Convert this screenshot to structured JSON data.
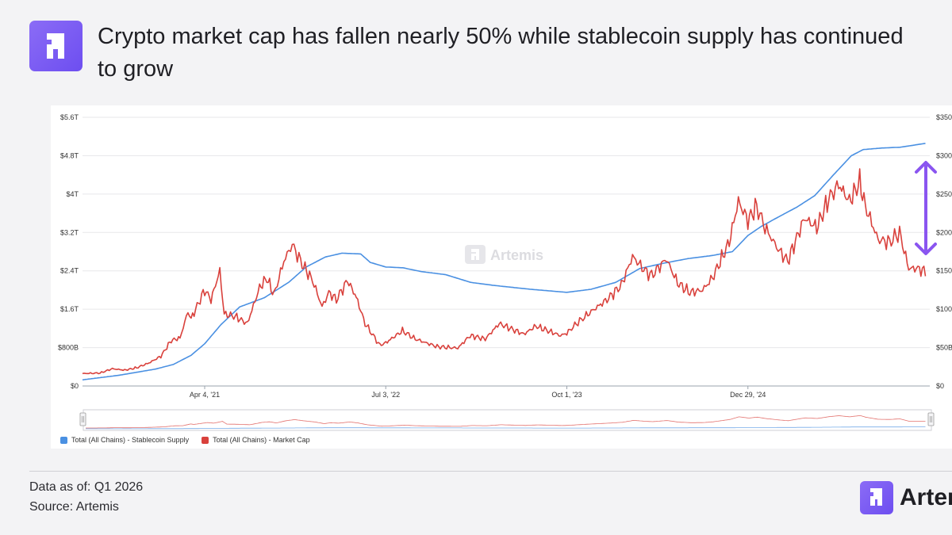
{
  "header": {
    "logo_icon": "artemis-logo-icon",
    "title": "Crypto market cap has fallen nearly 50% while stablecoin supply has continued to grow"
  },
  "chart_data": {
    "type": "line",
    "watermark": "Artemis",
    "x_ticks": [
      "Apr 4, '21",
      "Jul 3, '22",
      "Oct 1, '23",
      "Dec 29, '24"
    ],
    "y_left_ticks": [
      "$0",
      "$800B",
      "$1.6T",
      "$2.4T",
      "$3.2T",
      "$4T",
      "$4.8T",
      "$5.6T"
    ],
    "y_right_ticks": [
      "$0",
      "$50B",
      "$100B",
      "$150B",
      "$200B",
      "$250B",
      "$300B",
      "$350B"
    ],
    "ylim_left": [
      0,
      5.6
    ],
    "ylim_right": [
      0,
      350
    ],
    "xlim": [
      "2020-06-01",
      "2026-03-31"
    ],
    "legend_placement": "bottom-left",
    "grid": true,
    "series": [
      {
        "name": "Total (All Chains) - Stablecoin Supply",
        "axis": "right",
        "color": "#4a90e2",
        "points": [
          [
            "2020-06-01",
            8
          ],
          [
            "2020-09-01",
            14
          ],
          [
            "2020-12-01",
            22
          ],
          [
            "2021-01-15",
            28
          ],
          [
            "2021-03-01",
            40
          ],
          [
            "2021-04-04",
            55
          ],
          [
            "2021-05-15",
            80
          ],
          [
            "2021-07-01",
            103
          ],
          [
            "2021-09-01",
            115
          ],
          [
            "2021-11-01",
            135
          ],
          [
            "2021-12-15",
            155
          ],
          [
            "2022-02-01",
            168
          ],
          [
            "2022-03-15",
            173
          ],
          [
            "2022-05-01",
            172
          ],
          [
            "2022-05-25",
            161
          ],
          [
            "2022-07-03",
            155
          ],
          [
            "2022-08-15",
            154
          ],
          [
            "2022-10-01",
            149
          ],
          [
            "2022-12-01",
            145
          ],
          [
            "2023-02-01",
            135
          ],
          [
            "2023-04-01",
            131
          ],
          [
            "2023-07-01",
            126
          ],
          [
            "2023-10-01",
            122
          ],
          [
            "2023-12-01",
            126
          ],
          [
            "2024-02-01",
            135
          ],
          [
            "2024-04-01",
            153
          ],
          [
            "2024-06-01",
            160
          ],
          [
            "2024-08-01",
            166
          ],
          [
            "2024-10-01",
            170
          ],
          [
            "2024-11-20",
            175
          ],
          [
            "2024-12-29",
            196
          ],
          [
            "2025-02-01",
            208
          ],
          [
            "2025-03-15",
            220
          ],
          [
            "2025-05-01",
            233
          ],
          [
            "2025-06-15",
            248
          ],
          [
            "2025-08-01",
            275
          ],
          [
            "2025-09-15",
            300
          ],
          [
            "2025-10-15",
            308
          ],
          [
            "2025-12-01",
            310
          ],
          [
            "2026-01-15",
            311
          ],
          [
            "2026-03-20",
            316
          ]
        ]
      },
      {
        "name": "Total (All Chains) - Market Cap",
        "axis": "left",
        "color": "#d9413c",
        "points": [
          [
            "2020-06-01",
            0.26
          ],
          [
            "2020-07-15",
            0.27
          ],
          [
            "2020-08-15",
            0.36
          ],
          [
            "2020-09-15",
            0.33
          ],
          [
            "2020-10-15",
            0.38
          ],
          [
            "2020-11-15",
            0.48
          ],
          [
            "2020-12-15",
            0.62
          ],
          [
            "2021-01-10",
            0.95
          ],
          [
            "2021-02-01",
            1.0
          ],
          [
            "2021-02-21",
            1.55
          ],
          [
            "2021-03-01",
            1.4
          ],
          [
            "2021-04-04",
            2.0
          ],
          [
            "2021-04-20",
            1.8
          ],
          [
            "2021-05-12",
            2.4
          ],
          [
            "2021-05-23",
            1.5
          ],
          [
            "2021-06-20",
            1.45
          ],
          [
            "2021-07-20",
            1.3
          ],
          [
            "2021-08-20",
            2.05
          ],
          [
            "2021-09-07",
            2.25
          ],
          [
            "2021-09-25",
            1.9
          ],
          [
            "2021-10-20",
            2.6
          ],
          [
            "2021-11-10",
            2.95
          ],
          [
            "2021-12-01",
            2.6
          ],
          [
            "2021-12-31",
            2.2
          ],
          [
            "2022-01-24",
            1.65
          ],
          [
            "2022-02-10",
            1.95
          ],
          [
            "2022-03-01",
            1.8
          ],
          [
            "2022-03-29",
            2.2
          ],
          [
            "2022-04-20",
            1.85
          ],
          [
            "2022-05-12",
            1.3
          ],
          [
            "2022-06-18",
            0.85
          ],
          [
            "2022-07-03",
            0.9
          ],
          [
            "2022-08-14",
            1.15
          ],
          [
            "2022-09-15",
            0.98
          ],
          [
            "2022-11-09",
            0.82
          ],
          [
            "2022-12-31",
            0.79
          ],
          [
            "2023-01-31",
            1.05
          ],
          [
            "2023-03-10",
            0.98
          ],
          [
            "2023-04-14",
            1.3
          ],
          [
            "2023-06-15",
            1.08
          ],
          [
            "2023-07-15",
            1.25
          ],
          [
            "2023-09-15",
            1.05
          ],
          [
            "2023-10-01",
            1.1
          ],
          [
            "2023-10-25",
            1.3
          ],
          [
            "2023-12-01",
            1.55
          ],
          [
            "2024-01-10",
            1.8
          ],
          [
            "2024-02-15",
            2.1
          ],
          [
            "2024-03-14",
            2.7
          ],
          [
            "2024-04-15",
            2.4
          ],
          [
            "2024-05-01",
            2.3
          ],
          [
            "2024-06-07",
            2.65
          ],
          [
            "2024-07-05",
            2.15
          ],
          [
            "2024-08-05",
            1.95
          ],
          [
            "2024-09-06",
            2.0
          ],
          [
            "2024-10-01",
            2.25
          ],
          [
            "2024-11-12",
            3.0
          ],
          [
            "2024-12-05",
            3.85
          ],
          [
            "2024-12-29",
            3.45
          ],
          [
            "2025-01-20",
            3.75
          ],
          [
            "2025-02-10",
            3.3
          ],
          [
            "2025-03-15",
            2.85
          ],
          [
            "2025-04-08",
            2.6
          ],
          [
            "2025-05-20",
            3.5
          ],
          [
            "2025-06-20",
            3.3
          ],
          [
            "2025-07-20",
            3.9
          ],
          [
            "2025-08-14",
            4.2
          ],
          [
            "2025-09-10",
            3.85
          ],
          [
            "2025-10-06",
            4.25
          ],
          [
            "2025-10-20",
            3.75
          ],
          [
            "2025-11-21",
            3.05
          ],
          [
            "2025-12-20",
            3.0
          ],
          [
            "2026-01-14",
            3.2
          ],
          [
            "2026-02-06",
            2.45
          ],
          [
            "2026-03-01",
            2.45
          ],
          [
            "2026-03-20",
            2.38
          ]
        ]
      }
    ]
  },
  "footer": {
    "data_as_of": "Data as of: Q1 2026",
    "source": "Source: Artemis",
    "brand_icon": "artemis-logo-icon",
    "brand_name": "Artemis"
  }
}
